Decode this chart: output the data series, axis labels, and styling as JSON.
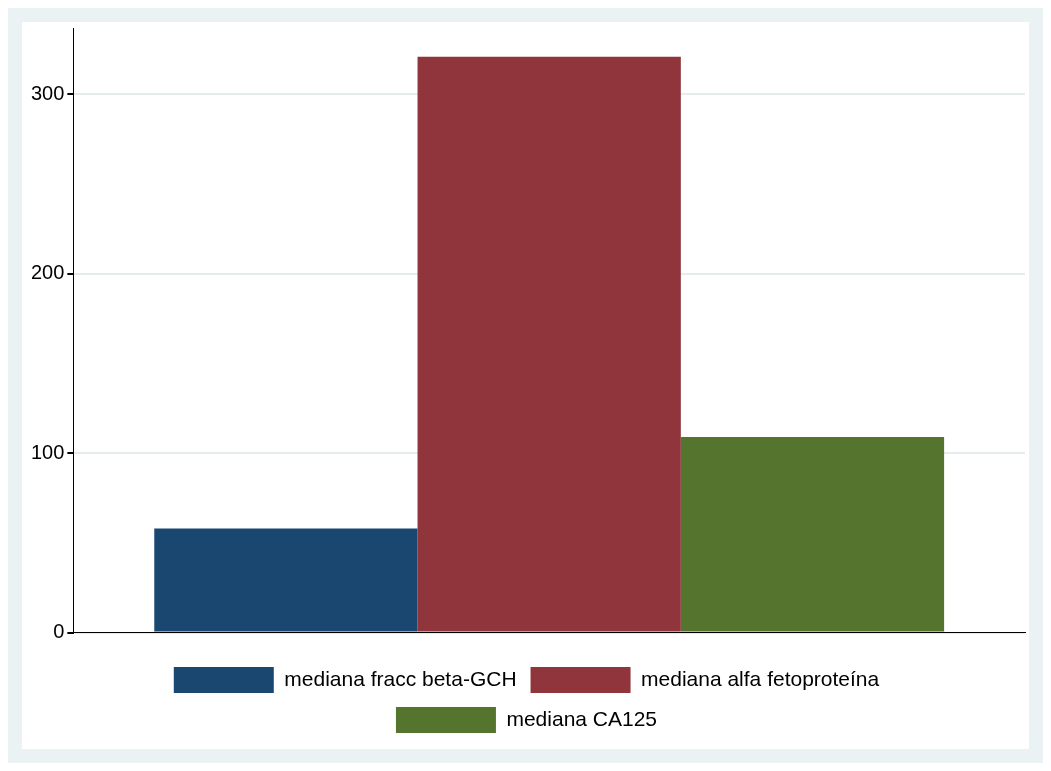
{
  "chart_data": {
    "type": "bar",
    "categories": [
      null
    ],
    "series": [
      {
        "name": "mediana fracc beta-GCH",
        "color": "#1a476f",
        "values": [
          58
        ]
      },
      {
        "name": "mediana alfa fetoproteína",
        "color": "#90353b",
        "values": [
          321
        ]
      },
      {
        "name": "mediana CA125",
        "color": "#55752f",
        "values": [
          109
        ]
      }
    ],
    "ylim": [
      0,
      337
    ],
    "yticks": [
      0,
      100,
      200,
      300
    ],
    "grid": "y",
    "legend": "bottom"
  }
}
